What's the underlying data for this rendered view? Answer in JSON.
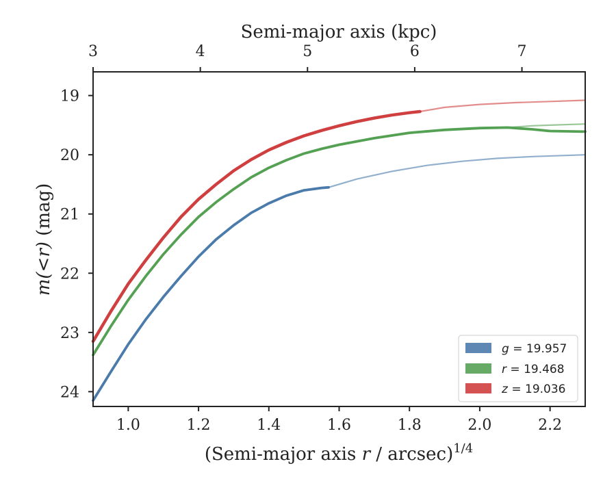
{
  "chart_data": {
    "type": "line",
    "xlabel_bottom_prefix": "(Semi-major axis ",
    "xlabel_bottom_var": "r",
    "xlabel_bottom_suffix": " / arcsec)",
    "xlabel_bottom_exp": "1/4",
    "xlabel_top": "Semi-major axis (kpc)",
    "ylabel_prefix": "m(<r)",
    "ylabel_suffix": " (mag)",
    "xlim": [
      0.9,
      2.3
    ],
    "ylim": [
      24.25,
      18.6
    ],
    "y_inverted": true,
    "x_ticks": [
      1.0,
      1.2,
      1.4,
      1.6,
      1.8,
      2.0,
      2.2
    ],
    "x_tick_labels": [
      "1.0",
      "1.2",
      "1.4",
      "1.6",
      "1.8",
      "2.0",
      "2.2"
    ],
    "top_x_ticks_pos": [
      0.9,
      1.205,
      1.51,
      1.815,
      2.12
    ],
    "top_x_tick_labels": [
      "3",
      "4",
      "5",
      "6",
      "7"
    ],
    "y_ticks": [
      19,
      20,
      21,
      22,
      23,
      24
    ],
    "y_tick_labels": [
      "19",
      "20",
      "21",
      "22",
      "23",
      "24"
    ],
    "legend_placement": "lower-right",
    "series": [
      {
        "name": "g = 19.957",
        "band": "g",
        "mag_label": "19.957",
        "color": "#4a7bab",
        "x": [
          0.9,
          0.95,
          1.0,
          1.05,
          1.1,
          1.15,
          1.2,
          1.25,
          1.3,
          1.35,
          1.4,
          1.45,
          1.5,
          1.55,
          1.57
        ],
        "y": [
          24.15,
          23.67,
          23.2,
          22.78,
          22.4,
          22.05,
          21.72,
          21.43,
          21.19,
          20.98,
          20.82,
          20.69,
          20.6,
          20.56,
          20.55
        ],
        "extrap_x": [
          1.57,
          1.65,
          1.75,
          1.85,
          1.95,
          2.05,
          2.15,
          2.3
        ],
        "extrap_y": [
          20.55,
          20.41,
          20.28,
          20.18,
          20.11,
          20.06,
          20.03,
          20.0
        ]
      },
      {
        "name": "r = 19.468",
        "band": "r",
        "mag_label": "19.468",
        "color": "#55a154",
        "x": [
          0.9,
          0.95,
          1.0,
          1.05,
          1.1,
          1.15,
          1.2,
          1.25,
          1.3,
          1.35,
          1.4,
          1.45,
          1.5,
          1.55,
          1.6,
          1.7,
          1.8,
          1.9,
          2.0,
          2.08,
          2.15,
          2.2,
          2.3
        ],
        "y": [
          23.38,
          22.9,
          22.45,
          22.05,
          21.68,
          21.35,
          21.05,
          20.8,
          20.58,
          20.38,
          20.22,
          20.09,
          19.98,
          19.9,
          19.83,
          19.72,
          19.63,
          19.58,
          19.55,
          19.54,
          19.57,
          19.6,
          19.61
        ],
        "extrap_x": [
          2.08,
          2.15,
          2.2,
          2.3
        ],
        "extrap_y": [
          19.54,
          19.51,
          19.5,
          19.48
        ]
      },
      {
        "name": "z = 19.036",
        "band": "z",
        "mag_label": "19.036",
        "color": "#d03f3f",
        "x": [
          0.9,
          0.95,
          1.0,
          1.05,
          1.1,
          1.15,
          1.2,
          1.25,
          1.3,
          1.35,
          1.4,
          1.45,
          1.5,
          1.55,
          1.6,
          1.65,
          1.7,
          1.75,
          1.8,
          1.83
        ],
        "y": [
          23.15,
          22.65,
          22.18,
          21.78,
          21.4,
          21.05,
          20.75,
          20.5,
          20.27,
          20.08,
          19.92,
          19.79,
          19.68,
          19.59,
          19.51,
          19.44,
          19.38,
          19.33,
          19.29,
          19.27
        ],
        "extrap_x": [
          1.83,
          1.9,
          2.0,
          2.1,
          2.2,
          2.3
        ],
        "extrap_y": [
          19.27,
          19.2,
          19.15,
          19.12,
          19.1,
          19.08
        ]
      }
    ]
  }
}
